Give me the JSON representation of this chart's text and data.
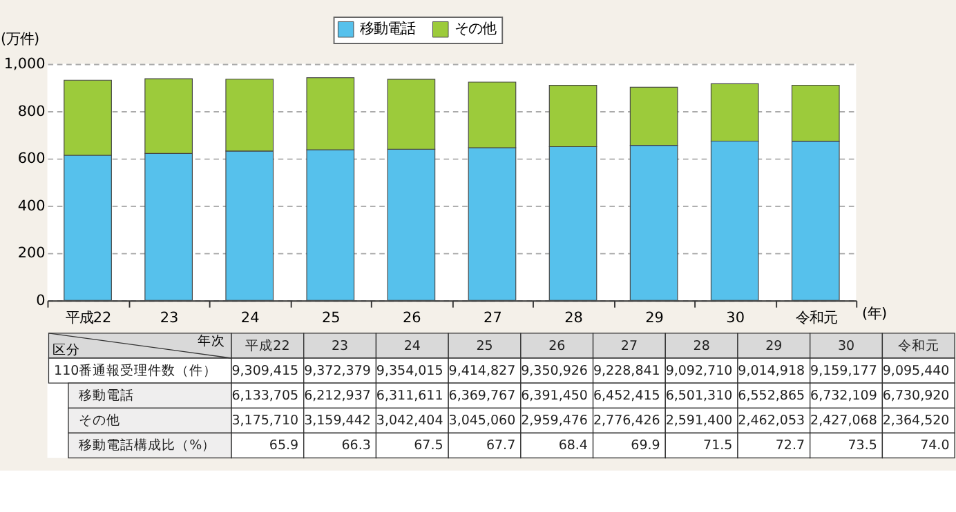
{
  "chart_data": {
    "type": "bar",
    "stacked": true,
    "ylabel": "(万件)",
    "xlabel": "(年)",
    "categories": [
      "平成22",
      "23",
      "24",
      "25",
      "26",
      "27",
      "28",
      "29",
      "30",
      "令和元"
    ],
    "series": [
      {
        "name": "移動電話",
        "color": "#56c1ec",
        "values": [
          613.4,
          621.3,
          631.2,
          637.0,
          639.1,
          645.2,
          650.1,
          655.3,
          673.2,
          673.1
        ]
      },
      {
        "name": "その他",
        "color": "#9ccb3b",
        "values": [
          317.6,
          315.9,
          304.2,
          304.5,
          295.9,
          277.6,
          259.1,
          246.2,
          242.7,
          236.5
        ]
      }
    ],
    "annotations": [
      "年次",
      "区分",
      "110番通報受理件数（件）",
      "移動電話構成比（%）",
      "9,309,415",
      "9,372,379",
      "9,354,015",
      "9,414,827",
      "9,350,926",
      "9,228,841",
      "9,092,710",
      "9,014,918",
      "9,159,177",
      "9,095,440",
      "6,133,705",
      "6,212,937",
      "6,311,611",
      "6,369,767",
      "6,391,450",
      "6,452,415",
      "6,501,310",
      "6,552,865",
      "6,732,109",
      "6,730,920",
      "3,175,710",
      "3,159,442",
      "3,042,404",
      "3,045,060",
      "2,959,476",
      "2,776,426",
      "2,591,400",
      "2,462,053",
      "2,427,068",
      "2,364,520",
      "65.9",
      "66.3",
      "67.5",
      "67.7",
      "68.4",
      "69.9",
      "71.5",
      "72.7",
      "73.5",
      "74.0"
    ],
    "ylim": [
      0,
      1000
    ],
    "yticks": [
      0,
      200,
      400,
      600,
      800,
      {
        "value": 1000,
        "label": "1,000"
      }
    ],
    "grid": "y",
    "legend": "top"
  }
}
